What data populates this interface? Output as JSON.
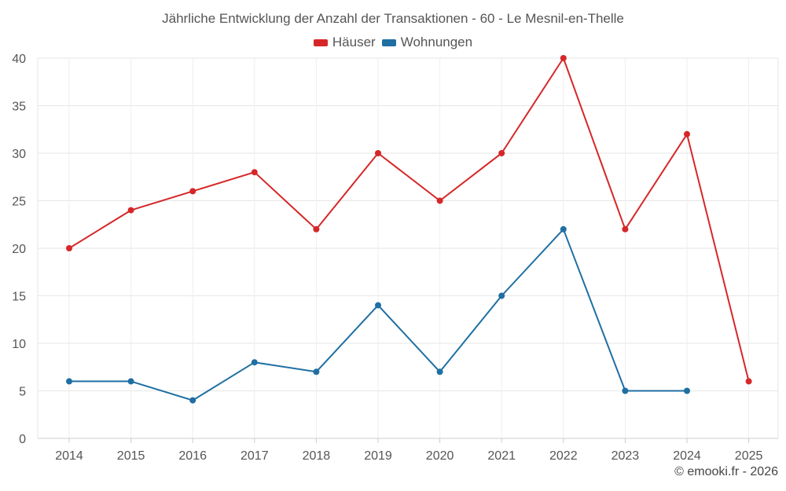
{
  "chart_data": {
    "type": "line",
    "title": "Jährliche Entwicklung der Anzahl der Transaktionen - 60 - Le Mesnil-en-Thelle",
    "categories": [
      "2014",
      "2015",
      "2016",
      "2017",
      "2018",
      "2019",
      "2020",
      "2021",
      "2022",
      "2023",
      "2024",
      "2025"
    ],
    "ylim": [
      0,
      40
    ],
    "yticks": [
      0,
      5,
      10,
      15,
      20,
      25,
      30,
      35,
      40
    ],
    "xlabel": "",
    "ylabel": "",
    "grid": true,
    "legend_position": "top-center",
    "series": [
      {
        "name": "Häuser",
        "color": "#d62728",
        "values": [
          20,
          24,
          26,
          28,
          22,
          30,
          25,
          30,
          40,
          22,
          32,
          6
        ]
      },
      {
        "name": "Wohnungen",
        "color": "#1f6fa3",
        "values": [
          6,
          6,
          4,
          8,
          7,
          14,
          7,
          15,
          22,
          5,
          5,
          null
        ]
      }
    ]
  },
  "credit": "© emooki.fr - 2026"
}
